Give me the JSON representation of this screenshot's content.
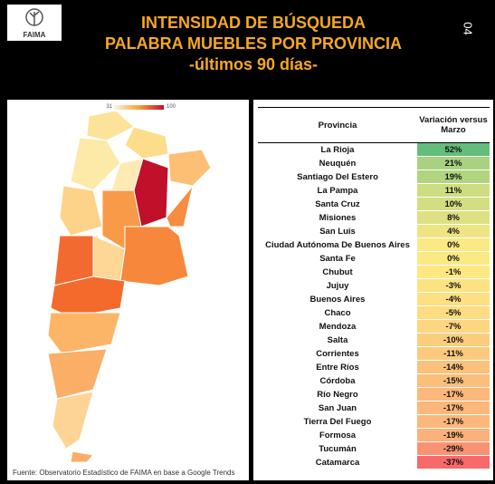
{
  "header": {
    "title_lines": [
      "INTENSIDAD DE BÚSQUEDA",
      "PALABRA MUEBLES POR PROVINCIA",
      "-últimos 90 días-"
    ],
    "page_number": "04",
    "logo": "FAIMA"
  },
  "map": {
    "legend_min": "31",
    "legend_max": "100",
    "source": "Fuente: Observatorio Estadístico de FAIMA en base a Google Trends"
  },
  "table": {
    "columns": [
      "Provincia",
      "Variación versus Marzo"
    ],
    "rows": [
      {
        "province": "La Rioja",
        "change": "52%",
        "color": "#63be7b"
      },
      {
        "province": "Neuquén",
        "change": "21%",
        "color": "#a8d27f"
      },
      {
        "province": "Santiago Del Estero",
        "change": "19%",
        "color": "#b0d480"
      },
      {
        "province": "La Pampa",
        "change": "11%",
        "color": "#cfdd82"
      },
      {
        "province": "Santa Cruz",
        "change": "10%",
        "color": "#d3de82"
      },
      {
        "province": "Misiones",
        "change": "8%",
        "color": "#dde083"
      },
      {
        "province": "San Luis",
        "change": "4%",
        "color": "#eee483"
      },
      {
        "province": "Ciudad Autónoma De Buenos Aires",
        "change": "0%",
        "color": "#fbe983"
      },
      {
        "province": "Santa Fe",
        "change": "0%",
        "color": "#fbe983"
      },
      {
        "province": "Chubut",
        "change": "-1%",
        "color": "#fee883"
      },
      {
        "province": "Jujuy",
        "change": "-3%",
        "color": "#fee282"
      },
      {
        "province": "Buenos Aires",
        "change": "-4%",
        "color": "#fedf81"
      },
      {
        "province": "Chaco",
        "change": "-5%",
        "color": "#fedc81"
      },
      {
        "province": "Mendoza",
        "change": "-7%",
        "color": "#fed680"
      },
      {
        "province": "Salta",
        "change": "-10%",
        "color": "#fdcd7e"
      },
      {
        "province": "Corrientes",
        "change": "-11%",
        "color": "#fdca7d"
      },
      {
        "province": "Entre Ríos",
        "change": "-14%",
        "color": "#fcc17b"
      },
      {
        "province": "Córdoba",
        "change": "-15%",
        "color": "#fcbe7b"
      },
      {
        "province": "Río Negro",
        "change": "-17%",
        "color": "#fcb77a"
      },
      {
        "province": "San Juan",
        "change": "-17%",
        "color": "#fcb77a"
      },
      {
        "province": "Tierra Del Fuego",
        "change": "-17%",
        "color": "#fcb77a"
      },
      {
        "province": "Formosa",
        "change": "-19%",
        "color": "#fbb179"
      },
      {
        "province": "Tucumán",
        "change": "-29%",
        "color": "#f99274"
      },
      {
        "province": "Catamarca",
        "change": "-37%",
        "color": "#f8696b"
      }
    ]
  }
}
